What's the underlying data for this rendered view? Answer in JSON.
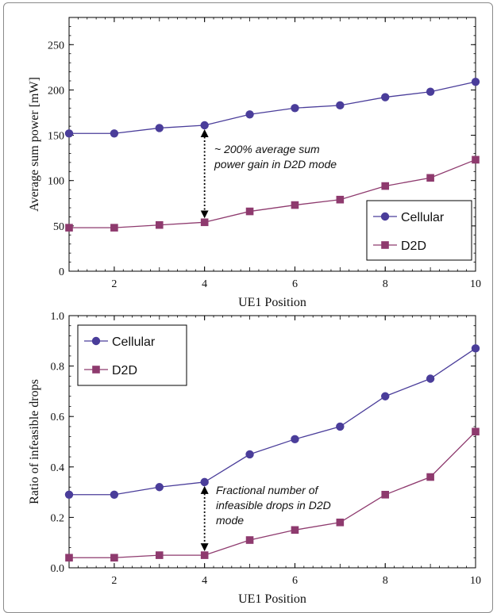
{
  "colors": {
    "cellular": "#4a3d9a",
    "d2d": "#8e3a6e"
  },
  "chart_data": [
    {
      "type": "line",
      "title": "",
      "xlabel": "UE1 Position",
      "ylabel": "Average sum power [mW]",
      "xlim": [
        1,
        10
      ],
      "ylim": [
        0,
        280
      ],
      "xticks": [
        2,
        4,
        6,
        8,
        10
      ],
      "yticks": [
        0,
        50,
        100,
        150,
        200,
        250
      ],
      "x": [
        1,
        2,
        3,
        4,
        5,
        6,
        7,
        8,
        9,
        10
      ],
      "series": [
        {
          "name": "Cellular",
          "marker": "circle",
          "values": [
            152,
            152,
            158,
            161,
            173,
            180,
            183,
            192,
            198,
            209
          ]
        },
        {
          "name": "D2D",
          "marker": "square",
          "values": [
            48,
            48,
            51,
            54,
            66,
            73,
            79,
            94,
            103,
            123
          ]
        }
      ],
      "legend_position": "bottom-right",
      "annotation": {
        "lines": [
          "~ 200% average sum",
          "power gain in D2D mode"
        ],
        "at_x": 4,
        "from_y": 161,
        "to_y": 54
      }
    },
    {
      "type": "line",
      "title": "",
      "xlabel": "UE1 Position",
      "ylabel": "Ratio of infeasible drops",
      "xlim": [
        1,
        10
      ],
      "ylim": [
        0,
        1.0
      ],
      "xticks": [
        2,
        4,
        6,
        8,
        10
      ],
      "yticks": [
        "0.0",
        "0.2",
        "0.4",
        "0.6",
        "0.8",
        "1.0"
      ],
      "x": [
        1,
        2,
        3,
        4,
        5,
        6,
        7,
        8,
        9,
        10
      ],
      "series": [
        {
          "name": "Cellular",
          "marker": "circle",
          "values": [
            0.29,
            0.29,
            0.32,
            0.34,
            0.45,
            0.51,
            0.56,
            0.68,
            0.75,
            0.87
          ]
        },
        {
          "name": "D2D",
          "marker": "square",
          "values": [
            0.04,
            0.04,
            0.05,
            0.05,
            0.11,
            0.15,
            0.18,
            0.29,
            0.36,
            0.54
          ]
        }
      ],
      "legend_position": "top-left",
      "annotation": {
        "lines": [
          "Fractional number of",
          "infeasible drops in D2D",
          "mode"
        ],
        "at_x": 4,
        "from_y": 0.34,
        "to_y": 0.05
      }
    }
  ]
}
